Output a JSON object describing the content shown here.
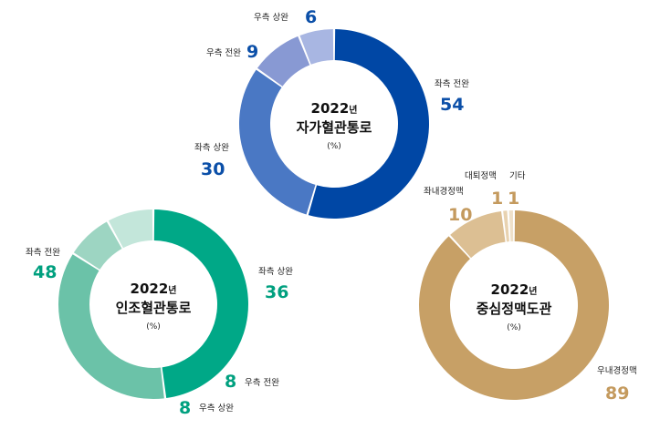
{
  "chart_data": [
    {
      "type": "pie",
      "title_year": "2022",
      "title_year_suffix": "년",
      "title": "자가혈관통로",
      "unit": "(%)",
      "colors": [
        "#0047a5",
        "#4a78c4",
        "#8899d3",
        "#a8b6e2"
      ],
      "slices": [
        {
          "label": "좌측 전완",
          "value": 54,
          "value_text": "54"
        },
        {
          "label": "좌측 상완",
          "value": 30,
          "value_text": "30"
        },
        {
          "label": "우측 전완",
          "value": 9,
          "value_text": "9"
        },
        {
          "label": "우측 상완",
          "value": 6,
          "value_text": "6"
        }
      ]
    },
    {
      "type": "pie",
      "title_year": "2022",
      "title_year_suffix": "년",
      "title": "인조혈관통로",
      "unit": "(%)",
      "colors": [
        "#00a887",
        "#6bc2a8",
        "#9dd5c2",
        "#c3e6da"
      ],
      "slices": [
        {
          "label": "좌측 전완",
          "value": 48,
          "value_text": "48"
        },
        {
          "label": "좌측 상완",
          "value": 36,
          "value_text": "36"
        },
        {
          "label": "우측 전완",
          "value": 8,
          "value_text": "8"
        },
        {
          "label": "우측 상완",
          "value": 8,
          "value_text": "8"
        }
      ]
    },
    {
      "type": "pie",
      "title_year": "2022",
      "title_year_suffix": "년",
      "title": "중심정맥도관",
      "unit": "(%)",
      "colors": [
        "#c7a066",
        "#dcbf93",
        "#e8d2b0",
        "#eee0c9"
      ],
      "slices": [
        {
          "label": "우내경정맥",
          "value": 89,
          "value_text": "89"
        },
        {
          "label": "좌내경정맥",
          "value": 10,
          "value_text": "10"
        },
        {
          "label": "대퇴정맥",
          "value": 1,
          "value_text": "1"
        },
        {
          "label": "기타",
          "value": 1,
          "value_text": "1"
        }
      ]
    }
  ]
}
